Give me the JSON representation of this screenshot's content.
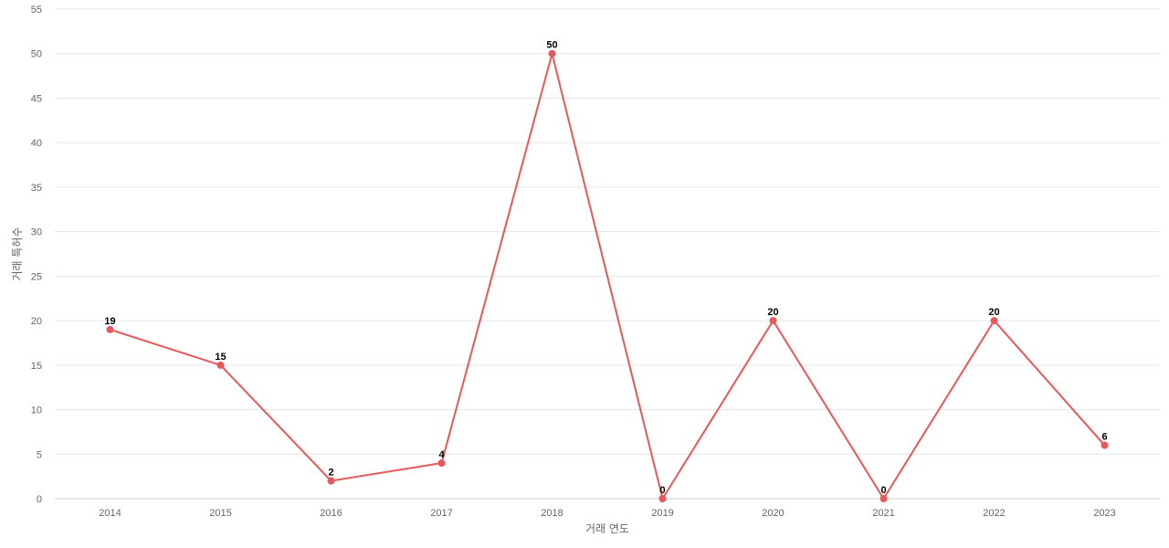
{
  "chart_data": {
    "type": "line",
    "title": "",
    "xlabel": "거래 연도",
    "ylabel": "거래 특허수",
    "categories": [
      "2014",
      "2015",
      "2016",
      "2017",
      "2018",
      "2019",
      "2020",
      "2021",
      "2022",
      "2023"
    ],
    "series": [
      {
        "values": [
          19,
          15,
          2,
          4,
          50,
          0,
          20,
          0,
          20,
          6
        ],
        "color": "#e8585a"
      }
    ],
    "ylim": [
      0,
      55
    ],
    "yticks": [
      0,
      5,
      10,
      15,
      20,
      25,
      30,
      35,
      40,
      45,
      50,
      55
    ],
    "grid": true,
    "legend": "none",
    "data_labels": true
  }
}
